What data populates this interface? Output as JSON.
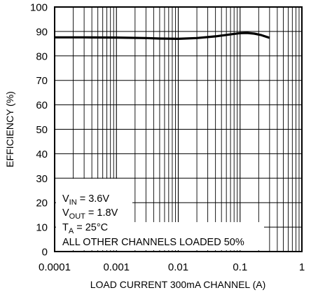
{
  "chart_data": {
    "type": "line",
    "title": "",
    "xlabel": "LOAD CURRENT 300mA CHANNEL (A)",
    "ylabel": "EFFICIENCY (%)",
    "x_scale": "log",
    "xlim": [
      0.0001,
      1
    ],
    "ylim": [
      0,
      100
    ],
    "grid": true,
    "x_ticks": [
      "0.0001",
      "0.001",
      "0.01",
      "0.1",
      "1"
    ],
    "y_ticks": [
      "0",
      "10",
      "20",
      "30",
      "40",
      "50",
      "60",
      "70",
      "80",
      "90",
      "100"
    ],
    "series": [
      {
        "x": [
          0.0001,
          0.0003,
          0.001,
          0.003,
          0.005,
          0.01,
          0.02,
          0.04,
          0.07,
          0.1,
          0.13,
          0.17,
          0.22,
          0.3
        ],
        "y": [
          87.6,
          87.6,
          87.5,
          87.3,
          87.1,
          87.0,
          87.3,
          88.0,
          88.8,
          89.3,
          89.4,
          89.1,
          88.5,
          87.4
        ]
      }
    ],
    "annotations": {
      "vin": {
        "sym": "V",
        "sub": "IN",
        "rest": " = 3.6V"
      },
      "vout": {
        "sym": "V",
        "sub": "OUT",
        "rest": " = 1.8V"
      },
      "ta": {
        "sym": "T",
        "sub": "A",
        "rest": " = 25°C"
      },
      "other": "ALL OTHER CHANNELS LOADED 50%"
    },
    "colors": {
      "line": "#000000",
      "grid": "#000000",
      "background": "#ffffff"
    }
  }
}
